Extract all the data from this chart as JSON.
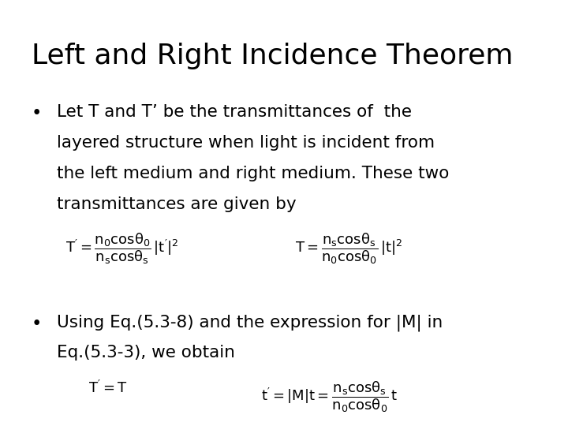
{
  "title": "Left and Right Incidence Theorem",
  "background_color": "#ffffff",
  "text_color": "#000000",
  "title_fontsize": 26,
  "body_fontsize": 15.5,
  "math_fontsize": 13,
  "figsize": [
    7.2,
    5.4
  ],
  "dpi": 100,
  "bullet1_line1": "Let T and T’ be the transmittances of  the",
  "bullet1_line2": "layered structure when light is incident from",
  "bullet1_line3": "the left medium and right medium. These two",
  "bullet1_line4": "transmittances are given by",
  "eq1_left": "$\\mathsf{T' = \\dfrac{n_0 cos\\theta_0}{n_s cos\\theta_s}\\,|t'|^2}$",
  "eq1_right": "$\\mathsf{T = \\dfrac{n_s cos\\theta_s}{n_0 cos\\theta_0}\\,|t|^2}$",
  "bullet2_line1": "Using Eq.(5.3-8) and the expression for |M| in",
  "bullet2_line2": "Eq.(5.3-3), we obtain",
  "eq2_left": "$\\mathsf{T' = T}$",
  "eq2_right": "$\\mathsf{t' = |M|t = \\dfrac{n_s cos\\theta_s}{n_0 cos\\theta_0}\\,t}$"
}
